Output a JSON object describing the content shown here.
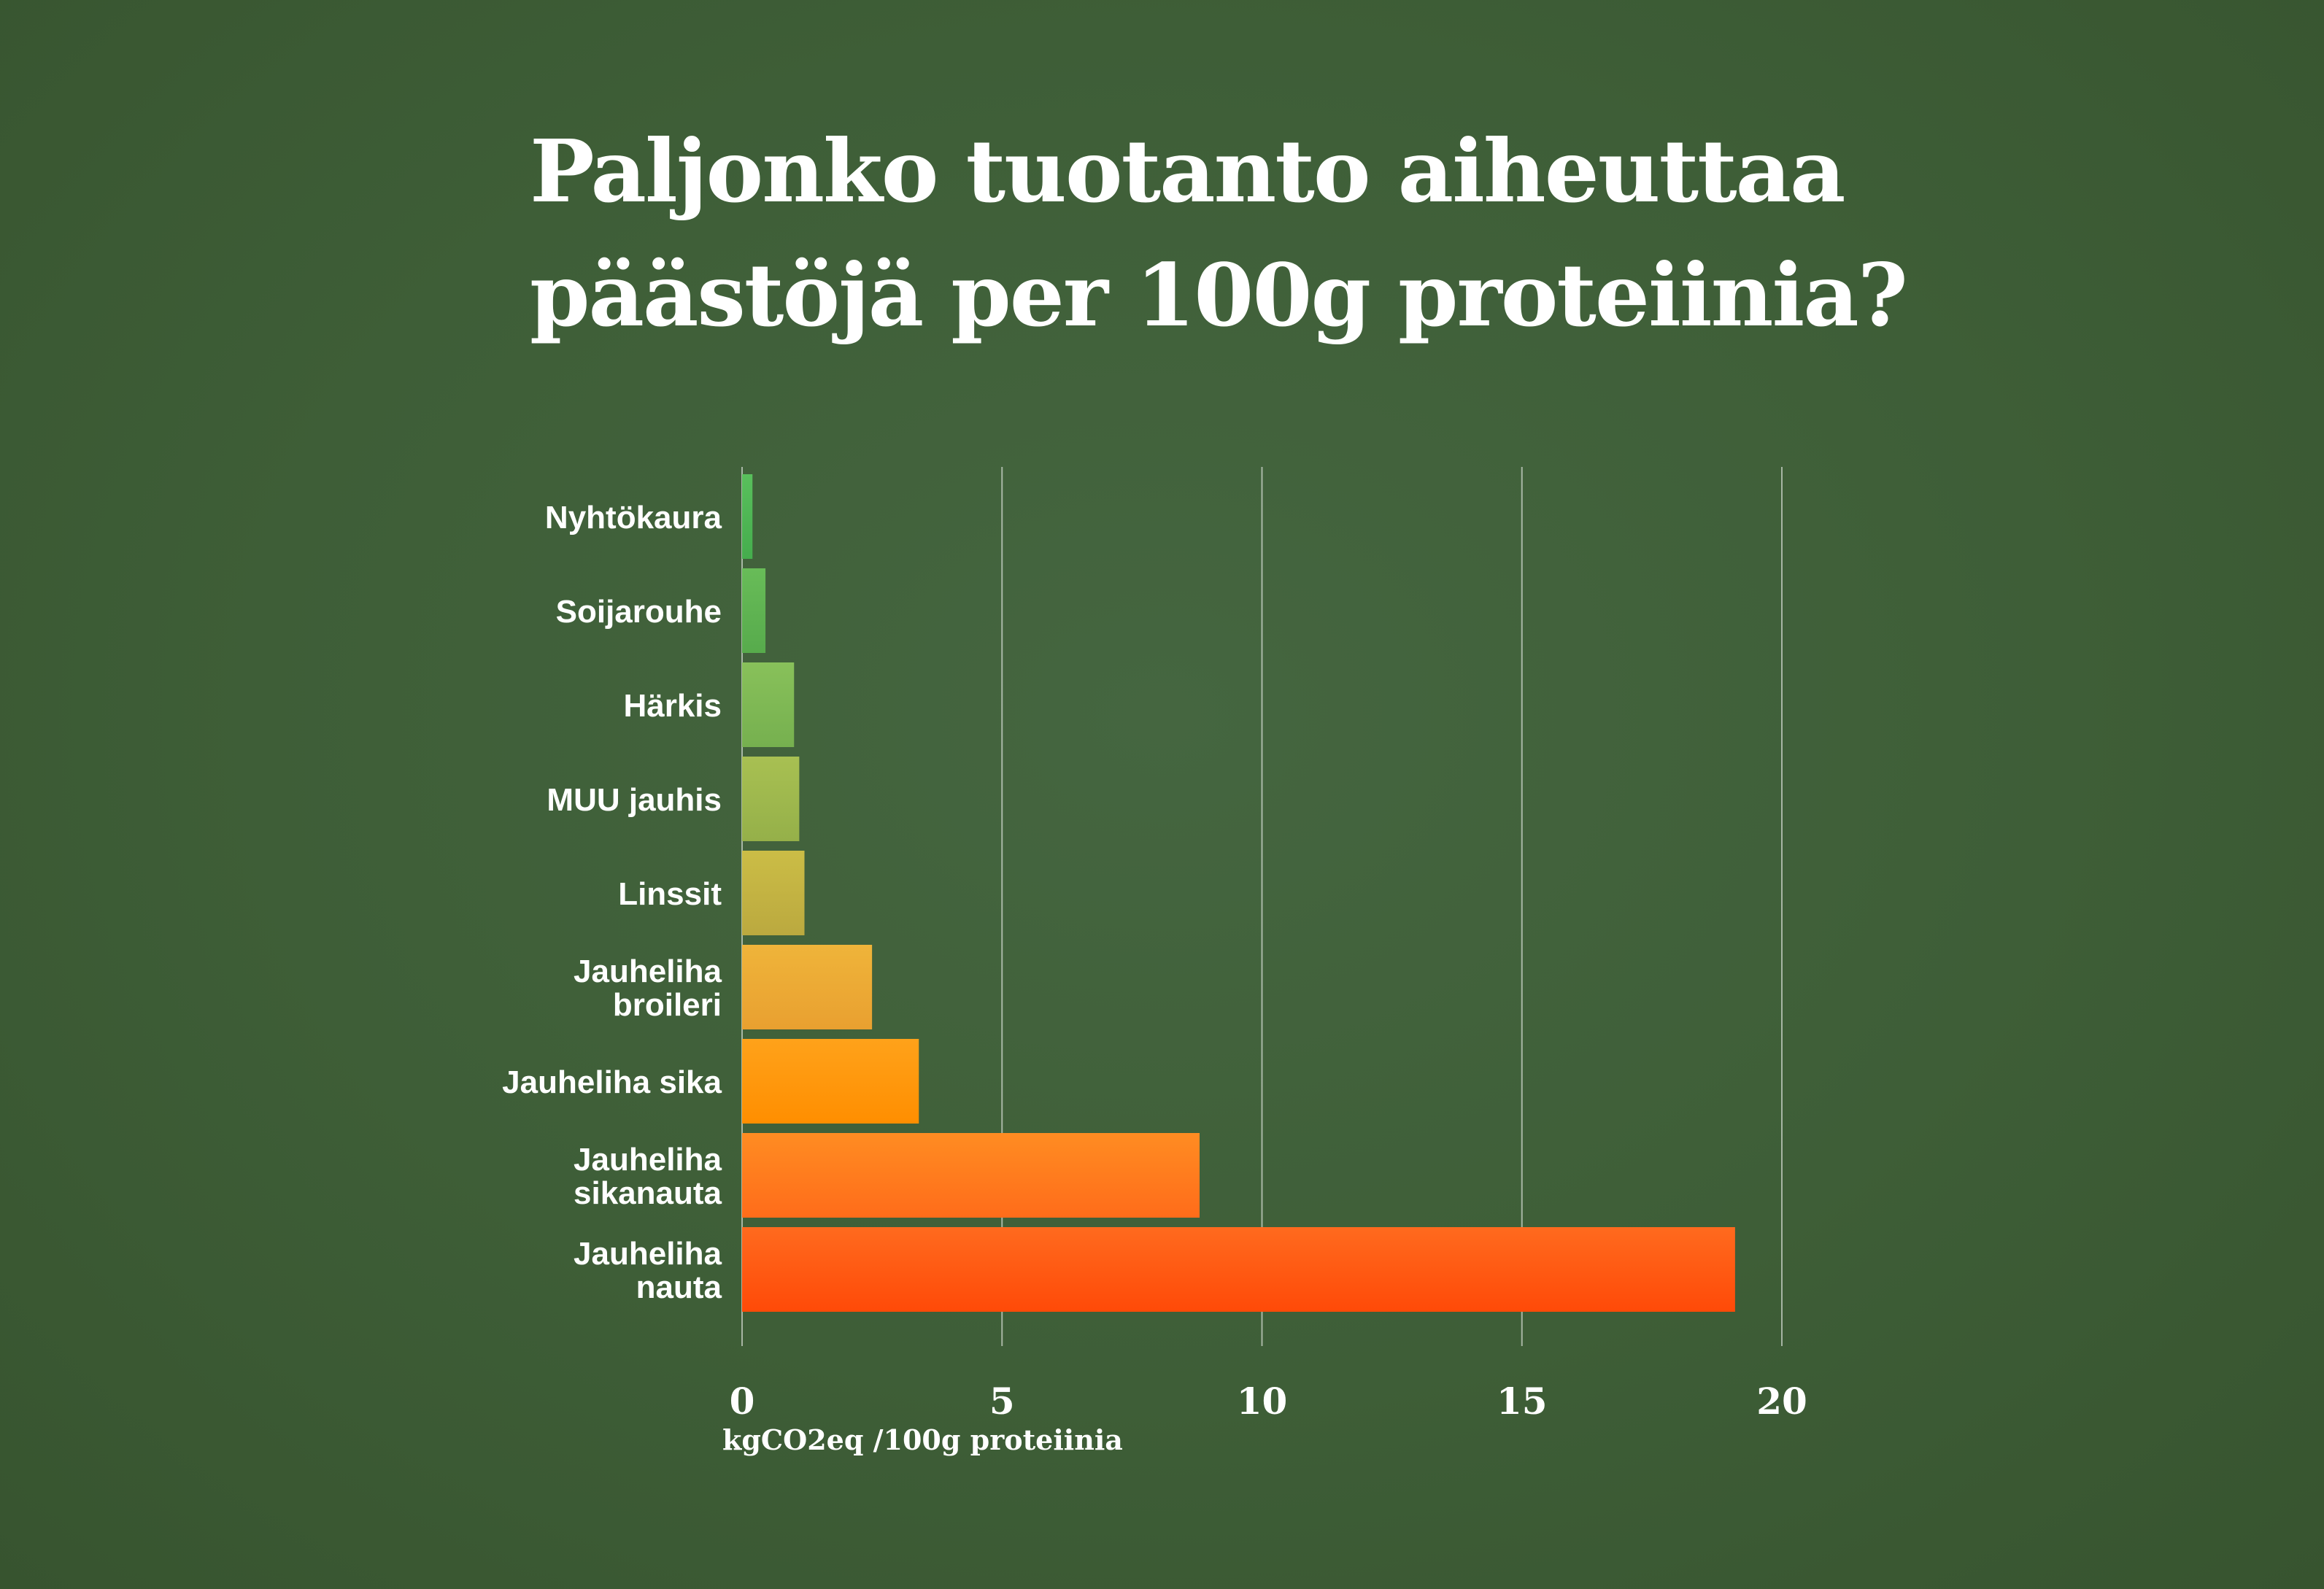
{
  "chart_data": {
    "type": "bar",
    "orientation": "horizontal",
    "title_lines": [
      "Paljonko tuotanto aiheuttaa",
      "päästöjä per 100g proteiinia?"
    ],
    "categories": [
      [
        "Nyhtökaura"
      ],
      [
        "Soijarouhe"
      ],
      [
        "Härkis"
      ],
      [
        "MUU jauhis"
      ],
      [
        "Linssit"
      ],
      [
        "Jauheliha",
        "broileri"
      ],
      [
        "Jauheliha sika"
      ],
      [
        "Jauheliha",
        "sikanauta"
      ],
      [
        "Jauheliha",
        "nauta"
      ]
    ],
    "values": [
      0.2,
      0.45,
      1.0,
      1.1,
      1.2,
      2.5,
      3.4,
      8.8,
      19.1
    ],
    "colors": [
      [
        "#59c05c",
        "#45ad4d"
      ],
      [
        "#68bc58",
        "#57ab4c"
      ],
      [
        "#88c15a",
        "#76b04f"
      ],
      [
        "#a8c052",
        "#95b049"
      ],
      [
        "#cbbd46",
        "#bba93f"
      ],
      [
        "#efb43a",
        "#e9a030"
      ],
      [
        "#ffa21a",
        "#ff8e00"
      ],
      [
        "#ff8c22",
        "#ff6c1a"
      ],
      [
        "#ff6a1e",
        "#ff4a08"
      ]
    ],
    "xlabel": "kgCO2eq /100g proteiinia",
    "xlim": [
      0,
      20
    ],
    "xticks": [
      0,
      5,
      10,
      15,
      20
    ],
    "grid": true
  }
}
